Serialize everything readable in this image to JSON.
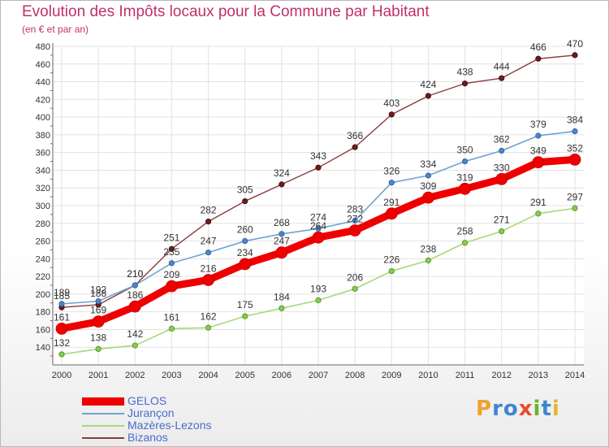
{
  "title": "Evolution des Impôts locaux pour la Commune par Habitant",
  "subtitle": "(en € et par an)",
  "logo": {
    "text": "Proxiti",
    "colors": [
      "#f2a12e",
      "#3f86d1",
      "#3f86d1",
      "#e84c2d",
      "#69b52b",
      "#3f86d1",
      "#e8b52d"
    ]
  },
  "chart_data": {
    "type": "line",
    "title": "Evolution des Impôts locaux pour la Commune par Habitant",
    "subtitle": "(en € et par an)",
    "x": [
      "2000",
      "2001",
      "2002",
      "2003",
      "2004",
      "2005",
      "2006",
      "2007",
      "2008",
      "2009",
      "2010",
      "2011",
      "2012",
      "2013",
      "2014"
    ],
    "ylim": [
      120,
      480
    ],
    "yticks": [
      140,
      160,
      180,
      200,
      220,
      240,
      260,
      280,
      300,
      320,
      340,
      360,
      380,
      400,
      420,
      440,
      460,
      480
    ],
    "grid": true,
    "legend_position": "bottom-left",
    "series": [
      {
        "name": "GELOS",
        "color": "#ee0000",
        "values": [
          161,
          169,
          186,
          209,
          216,
          234,
          247,
          264,
          272,
          291,
          309,
          319,
          330,
          349,
          352
        ]
      },
      {
        "name": "Jurançon",
        "color": "#6fa4d0",
        "values": [
          189,
          192,
          210,
          235,
          247,
          260,
          268,
          274,
          283,
          326,
          334,
          350,
          362,
          379,
          384
        ]
      },
      {
        "name": "Mazères-Lezons",
        "color": "#a6d97a",
        "values": [
          132,
          138,
          142,
          161,
          162,
          175,
          184,
          193,
          206,
          226,
          238,
          258,
          271,
          291,
          297
        ]
      },
      {
        "name": "Bizanos",
        "color": "#8b3b3b",
        "values": [
          185,
          188,
          210,
          251,
          282,
          305,
          324,
          343,
          366,
          403,
          424,
          438,
          444,
          466,
          470
        ]
      }
    ],
    "data_labels": [
      {
        "series": "GELOS",
        "values": [
          161,
          169,
          186,
          209,
          216,
          234,
          247,
          264,
          272,
          291,
          309,
          319,
          330,
          349,
          352
        ]
      },
      {
        "series": "Jurançon",
        "values": [
          189,
          192,
          210,
          235,
          247,
          260,
          268,
          274,
          283,
          326,
          334,
          350,
          362,
          379,
          384
        ]
      },
      {
        "series": "Mazères-Lezons",
        "values": [
          132,
          138,
          142,
          161,
          162,
          175,
          184,
          193,
          206,
          226,
          238,
          258,
          271,
          291,
          297
        ]
      },
      {
        "series": "Bizanos",
        "values": [
          185,
          188,
          210,
          251,
          282,
          305,
          324,
          343,
          366,
          403,
          424,
          438,
          444,
          466,
          470
        ]
      }
    ]
  }
}
